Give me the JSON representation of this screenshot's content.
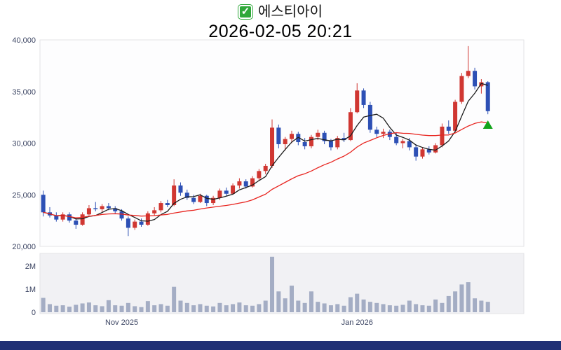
{
  "header": {
    "title": "에스티아이",
    "datetime": "2026-02-05 20:21",
    "checkbox_icon": "green-checkbox"
  },
  "colors": {
    "up": "#d03732",
    "down": "#2d50b5",
    "ma_short": "#1c1c1c",
    "ma_long": "#e8241f",
    "volume_bar": "#a4adc4",
    "marker_green": "#12a41b",
    "checkbox_green": "#2fa83a",
    "bottom_bar": "#203075",
    "axis_text": "#3c4563",
    "price_panel_bg": "#fdfdfe",
    "volume_panel_bg": "#f1f1f4",
    "panel_border": "#e3e3e6"
  },
  "chart_data": {
    "type": "candlestick",
    "title": "에스티아이",
    "subtitle": "2026-02-05 20:21",
    "legend_position": "none",
    "grid": false,
    "y_axis": {
      "ticks": [
        20000,
        25000,
        30000,
        35000,
        40000
      ],
      "labels": [
        "20,000",
        "25,000",
        "30,000",
        "35,000",
        "40,000"
      ]
    },
    "volume_axis": {
      "ticks": [
        0,
        1000000,
        2000000
      ],
      "labels": [
        "0",
        "1M",
        "2M"
      ]
    },
    "x_ticks": [
      {
        "index": 12,
        "label": "Nov 2025"
      },
      {
        "index": 48,
        "label": "Jan 2026"
      }
    ],
    "overlays": [
      {
        "name": "ma-short",
        "period": 5,
        "color": "#1c1c1c"
      },
      {
        "name": "ma-long",
        "period": 20,
        "color": "#e8241f"
      }
    ],
    "marker": {
      "index": 68,
      "price": 32200,
      "shape": "triangle-up",
      "color": "#12a41b"
    },
    "candle_format": "[open, high, low, close, volume]",
    "candles": [
      [
        25000,
        25400,
        22900,
        23300,
        620000
      ],
      [
        23300,
        23800,
        22800,
        23000,
        350000
      ],
      [
        23000,
        23300,
        22400,
        22600,
        280000
      ],
      [
        22600,
        23300,
        22400,
        23100,
        300000
      ],
      [
        23100,
        23300,
        22300,
        22500,
        240000
      ],
      [
        22500,
        22800,
        21700,
        22100,
        320000
      ],
      [
        22100,
        23300,
        22000,
        23100,
        380000
      ],
      [
        23100,
        24000,
        23000,
        23700,
        420000
      ],
      [
        23700,
        24300,
        23400,
        23600,
        300000
      ],
      [
        23600,
        24100,
        23300,
        23900,
        260000
      ],
      [
        23900,
        24200,
        23500,
        23700,
        520000
      ],
      [
        23700,
        23900,
        23200,
        23400,
        300000
      ],
      [
        23400,
        23600,
        22500,
        22700,
        280000
      ],
      [
        22700,
        22900,
        21000,
        21800,
        400000
      ],
      [
        21800,
        22600,
        21600,
        22400,
        260000
      ],
      [
        22400,
        22700,
        21900,
        22100,
        220000
      ],
      [
        22100,
        23400,
        22000,
        23200,
        480000
      ],
      [
        23200,
        23800,
        23000,
        23500,
        300000
      ],
      [
        23500,
        24400,
        23300,
        24200,
        350000
      ],
      [
        24200,
        24500,
        23800,
        24000,
        280000
      ],
      [
        24000,
        26500,
        23900,
        25900,
        1100000
      ],
      [
        25900,
        26200,
        24900,
        25200,
        500000
      ],
      [
        25200,
        25500,
        24500,
        24700,
        400000
      ],
      [
        24700,
        25000,
        24100,
        24300,
        300000
      ],
      [
        24300,
        25100,
        24200,
        24900,
        350000
      ],
      [
        24900,
        25000,
        23900,
        24200,
        280000
      ],
      [
        24200,
        24900,
        24000,
        24700,
        250000
      ],
      [
        24700,
        25600,
        24500,
        25400,
        400000
      ],
      [
        25400,
        25700,
        24900,
        25100,
        300000
      ],
      [
        25100,
        26100,
        25000,
        25900,
        350000
      ],
      [
        25900,
        26600,
        25600,
        26300,
        420000
      ],
      [
        26300,
        26500,
        25600,
        25800,
        300000
      ],
      [
        25800,
        26800,
        25700,
        26600,
        280000
      ],
      [
        26600,
        27500,
        26400,
        27300,
        350000
      ],
      [
        27300,
        28000,
        27000,
        27800,
        500000
      ],
      [
        27800,
        32300,
        27600,
        31500,
        2400000
      ],
      [
        31500,
        31800,
        29500,
        29900,
        900000
      ],
      [
        29900,
        30600,
        29300,
        30400,
        600000
      ],
      [
        30400,
        31200,
        30000,
        30900,
        1150000
      ],
      [
        30900,
        31100,
        29800,
        30100,
        500000
      ],
      [
        30100,
        30500,
        29400,
        29700,
        400000
      ],
      [
        29700,
        30800,
        29500,
        30600,
        900000
      ],
      [
        30600,
        31300,
        30300,
        31000,
        450000
      ],
      [
        31000,
        31200,
        29900,
        30200,
        380000
      ],
      [
        30200,
        30400,
        29300,
        29600,
        300000
      ],
      [
        29600,
        30700,
        29400,
        30500,
        350000
      ],
      [
        30500,
        31000,
        30100,
        30300,
        280000
      ],
      [
        30300,
        33400,
        30200,
        33000,
        650000
      ],
      [
        33000,
        35800,
        32900,
        35100,
        800000
      ],
      [
        35100,
        35300,
        33400,
        33700,
        550000
      ],
      [
        33700,
        34000,
        31000,
        31300,
        450000
      ],
      [
        31300,
        31600,
        30600,
        30900,
        400000
      ],
      [
        30900,
        31400,
        30500,
        31100,
        350000
      ],
      [
        31100,
        31300,
        30300,
        30600,
        300000
      ],
      [
        30600,
        31000,
        29800,
        30000,
        280000
      ],
      [
        30000,
        30400,
        29500,
        30200,
        320000
      ],
      [
        30200,
        30500,
        29300,
        29600,
        500000
      ],
      [
        29600,
        29900,
        28300,
        28700,
        350000
      ],
      [
        28700,
        29600,
        28500,
        29400,
        300000
      ],
      [
        29400,
        29700,
        28900,
        29100,
        280000
      ],
      [
        29100,
        30000,
        29000,
        29800,
        550000
      ],
      [
        29800,
        31900,
        29600,
        31600,
        400000
      ],
      [
        31600,
        32200,
        30900,
        31200,
        700000
      ],
      [
        31200,
        34200,
        31100,
        34000,
        900000
      ],
      [
        34000,
        36800,
        33800,
        36500,
        1200000
      ],
      [
        36500,
        39400,
        36300,
        37000,
        1300000
      ],
      [
        37000,
        37300,
        35200,
        35500,
        600000
      ],
      [
        35500,
        36200,
        34800,
        35900,
        500000
      ],
      [
        35900,
        36000,
        32800,
        33100,
        450000
      ]
    ]
  }
}
